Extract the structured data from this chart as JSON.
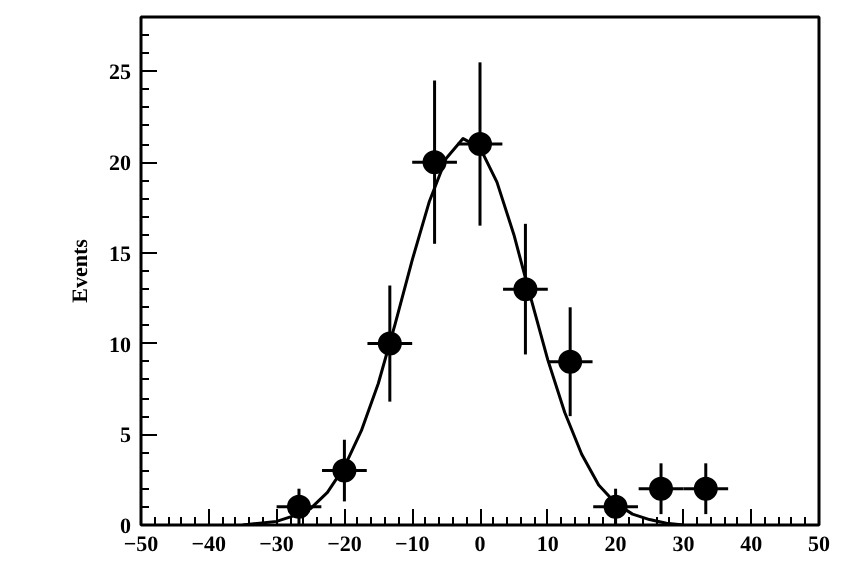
{
  "chart_data": {
    "type": "scatter",
    "ylabel": "Events",
    "xlim": [
      -50,
      50
    ],
    "ylim": [
      0,
      28
    ],
    "xticks": [
      -50,
      -40,
      -30,
      -20,
      -10,
      0,
      10,
      20,
      30,
      40,
      50
    ],
    "yticks": [
      0,
      5,
      10,
      15,
      20,
      25
    ],
    "grid": false,
    "series": [
      {
        "marker": "circle",
        "color": "#000000",
        "x": [
          -26.7,
          -20,
          -13.3,
          -6.7,
          0,
          6.7,
          13.3,
          20,
          26.7,
          33.3
        ],
        "values": [
          1,
          3,
          10,
          20,
          21,
          13,
          9,
          1,
          2,
          2
        ],
        "errors": [
          1,
          1.7,
          3.2,
          4.5,
          4.5,
          3.6,
          3,
          1,
          1.4,
          1.4
        ],
        "xerrors": [
          3.3,
          3.3,
          3.3,
          3.3,
          3.3,
          3.3,
          3.3,
          3.3,
          3.3,
          3.3
        ]
      },
      {
        "type": "line",
        "color": "#000000",
        "x": [
          -35,
          -32.5,
          -30,
          -27.5,
          -25,
          -22.5,
          -20,
          -17.5,
          -15,
          -12.5,
          -10,
          -7.5,
          -5,
          -2.5,
          0,
          2.5,
          5,
          7.5,
          10,
          12.5,
          15,
          17.5,
          20,
          22.5,
          25,
          27.5,
          30
        ],
        "values": [
          0,
          0.1,
          0.2,
          0.5,
          0.9,
          1.8,
          3.2,
          5.2,
          7.8,
          11.1,
          14.6,
          17.8,
          20.2,
          21.3,
          20.8,
          18.9,
          16.0,
          12.5,
          9.1,
          6.2,
          3.9,
          2.2,
          1.2,
          0.6,
          0.3,
          0.1,
          0
        ]
      }
    ]
  }
}
